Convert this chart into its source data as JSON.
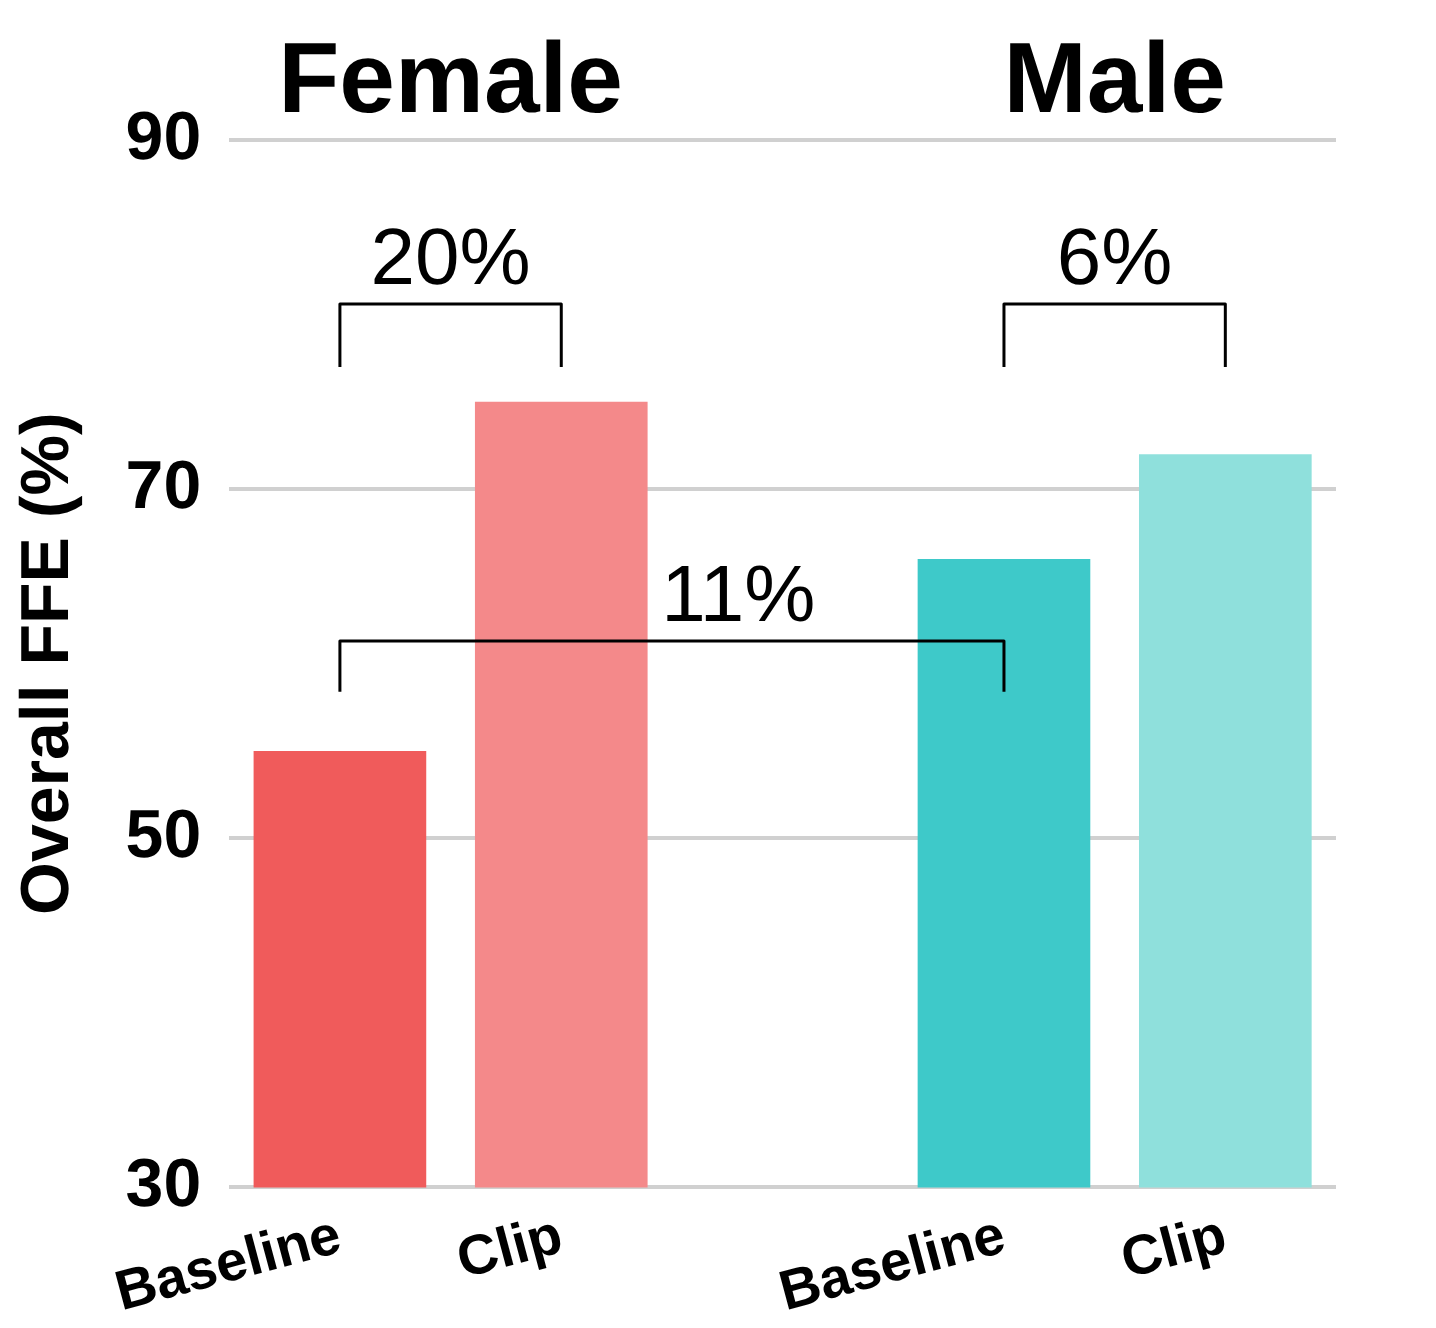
{
  "chart_data": {
    "type": "bar",
    "ylabel": "Overall FFE (%)",
    "categories": [
      "Baseline",
      "Clip",
      null,
      "Baseline",
      "Clip"
    ],
    "values": [
      55,
      75,
      null,
      66,
      72
    ],
    "colors": [
      "#f05b5b",
      "#f4898a",
      "#ffffff",
      "#3ec9c9",
      "#8fe0dc"
    ],
    "ylim": [
      30,
      90
    ],
    "yticks": [
      30,
      50,
      70,
      90
    ],
    "grid": "y",
    "legend": false,
    "annotations": [
      "Female",
      "Male",
      "20%",
      "6%",
      "11%"
    ]
  }
}
